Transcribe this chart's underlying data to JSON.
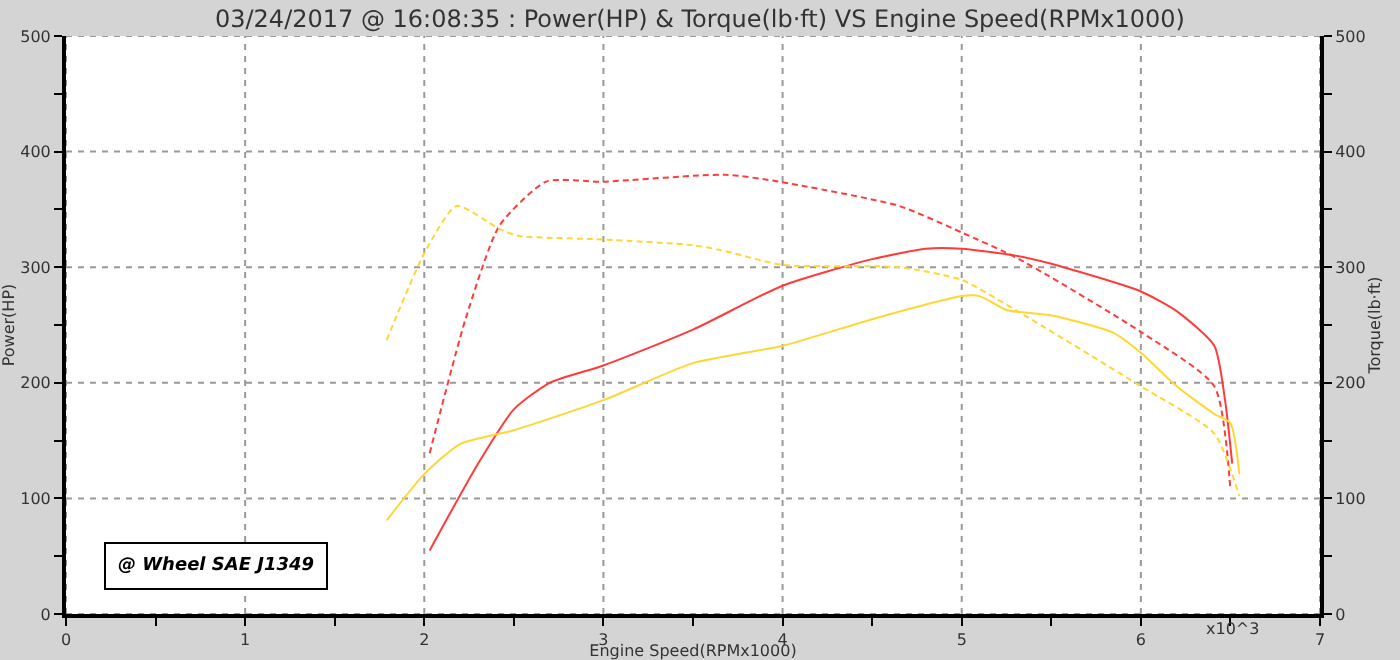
{
  "chart_data": {
    "type": "line",
    "title": "03/24/2017 @ 16:08:35 : Power(HP) & Torque(lb·ft) VS Engine Speed(RPMx1000)",
    "xlabel": "Engine Speed(RPMx1000)",
    "ylabel": "Power(HP)",
    "y2label": "Torque(lb·ft)",
    "annotations": [
      "@ Wheel SAE J1349",
      "x10^3"
    ],
    "xlim": [
      0,
      7
    ],
    "ylim": [
      0,
      500
    ],
    "y2lim": [
      0,
      500
    ],
    "xticks": [
      0,
      {
        "value": 0.5,
        "label": null
      },
      1,
      {
        "value": 1.5,
        "label": null
      },
      2,
      {
        "value": 2.5,
        "label": null
      },
      3,
      {
        "value": 3.5,
        "label": null
      },
      4,
      {
        "value": 4.5,
        "label": null
      },
      5,
      {
        "value": 5.5,
        "label": null
      },
      6,
      {
        "value": 6.5,
        "label": null
      },
      7
    ],
    "yticks": [
      0,
      {
        "value": 50,
        "label": null
      },
      100,
      {
        "value": 150,
        "label": null
      },
      200,
      {
        "value": 250,
        "label": null
      },
      300,
      {
        "value": 350,
        "label": null
      },
      400,
      {
        "value": 450,
        "label": null
      },
      500
    ],
    "y2ticks": [
      0,
      {
        "value": 50,
        "label": null
      },
      100,
      {
        "value": 150,
        "label": null
      },
      200,
      {
        "value": 250,
        "label": null
      },
      300,
      {
        "value": 350,
        "label": null
      },
      400,
      {
        "value": 450,
        "label": null
      },
      500
    ],
    "grid": true,
    "marker": "none",
    "series": [
      {
        "color": "#ff3b3b",
        "line_style": "solid",
        "axis": "y",
        "x": [
          2.03,
          2.3,
          2.5,
          2.7,
          3.0,
          3.5,
          4.0,
          4.5,
          4.8,
          5.0,
          5.3,
          5.5,
          6.0,
          6.2,
          6.41,
          6.47,
          6.51
        ],
        "values": [
          55,
          130,
          177,
          200,
          215,
          246,
          284,
          307,
          316,
          316,
          310,
          303,
          279,
          262,
          232,
          185,
          130
        ]
      },
      {
        "color": "#ff3b3b",
        "line_style": "dashed",
        "axis": "y2",
        "x": [
          2.03,
          2.23,
          2.42,
          2.68,
          3.0,
          3.68,
          3.98,
          4.65,
          5.0,
          5.32,
          6.0,
          6.41,
          6.5
        ],
        "values": [
          139,
          255,
          336,
          374,
          374,
          380,
          374,
          353,
          330,
          307,
          244,
          197,
          107
        ]
      },
      {
        "color": "#ffd633",
        "line_style": "solid",
        "axis": "y",
        "x": [
          1.79,
          2.0,
          2.2,
          2.5,
          3.0,
          3.5,
          4.0,
          4.5,
          5.0,
          5.1,
          5.25,
          5.51,
          5.85,
          6.0,
          6.2,
          6.41,
          6.5,
          6.55
        ],
        "values": [
          81,
          121,
          147,
          159,
          185,
          217,
          232,
          255,
          275,
          275,
          263,
          258,
          243,
          226,
          197,
          173,
          165,
          121
        ]
      },
      {
        "color": "#ffd633",
        "line_style": "dashed",
        "axis": "y2",
        "x": [
          1.79,
          2.0,
          2.18,
          2.42,
          2.53,
          3.0,
          3.5,
          3.65,
          4.0,
          4.65,
          5.0,
          5.3,
          6.0,
          6.41,
          6.55
        ],
        "values": [
          237,
          312,
          353,
          333,
          327,
          324,
          319,
          315,
          302,
          300,
          289,
          263,
          197,
          156,
          102
        ]
      }
    ]
  }
}
